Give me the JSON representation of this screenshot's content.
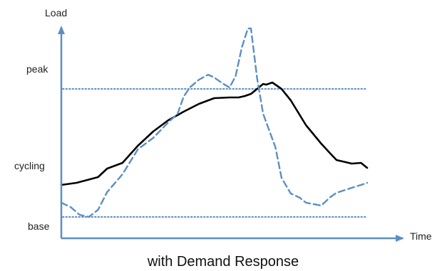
{
  "chart_data": {
    "type": "line",
    "title": "with Demand Response",
    "xlabel": "Time",
    "ylabel": "Load",
    "y_tick_labels": [
      "peak",
      "cycling",
      "base"
    ],
    "reference_lines": [
      {
        "level": "peak",
        "value": 2.1,
        "style": "dotted"
      },
      {
        "level": "base",
        "value": 0.3,
        "style": "dotted"
      }
    ],
    "xlim": [
      0,
      100
    ],
    "ylim": [
      0,
      3.0
    ],
    "series": [
      {
        "style": "solid",
        "color": "#000000",
        "x": [
          0,
          5,
          12,
          15,
          20,
          25,
          30,
          35,
          40,
          45,
          50,
          55,
          58,
          60,
          62,
          64,
          66,
          67,
          69,
          72,
          75,
          80,
          85,
          88,
          90,
          95,
          98,
          100
        ],
        "y": [
          0.75,
          0.78,
          0.86,
          0.98,
          1.06,
          1.3,
          1.5,
          1.66,
          1.78,
          1.89,
          1.97,
          1.98,
          1.98,
          2.0,
          2.03,
          2.1,
          2.17,
          2.16,
          2.19,
          2.1,
          1.94,
          1.59,
          1.33,
          1.19,
          1.1,
          1.05,
          1.06,
          0.99
        ]
      },
      {
        "style": "dashed",
        "color": "#5b8fc4",
        "x": [
          0,
          3,
          6,
          9,
          12,
          15,
          20,
          25,
          30,
          35,
          38,
          40,
          42,
          45,
          48,
          50,
          53,
          55,
          57,
          59,
          61,
          62,
          64,
          66,
          70,
          72,
          75,
          78,
          80,
          85,
          88,
          90,
          95,
          98,
          100
        ],
        "y": [
          0.5,
          0.44,
          0.33,
          0.3,
          0.4,
          0.65,
          0.9,
          1.25,
          1.41,
          1.63,
          1.75,
          1.99,
          2.12,
          2.23,
          2.3,
          2.26,
          2.17,
          2.12,
          2.28,
          2.68,
          2.95,
          2.95,
          2.25,
          1.75,
          1.28,
          0.85,
          0.63,
          0.57,
          0.5,
          0.46,
          0.58,
          0.64,
          0.71,
          0.75,
          0.78
        ]
      }
    ],
    "grid": false,
    "legend": "none"
  },
  "colors": {
    "axis": "#5b8fc4",
    "reference_line": "#5b8fc4",
    "solid_series": "#000000",
    "dashed_series": "#5b8fc4"
  }
}
